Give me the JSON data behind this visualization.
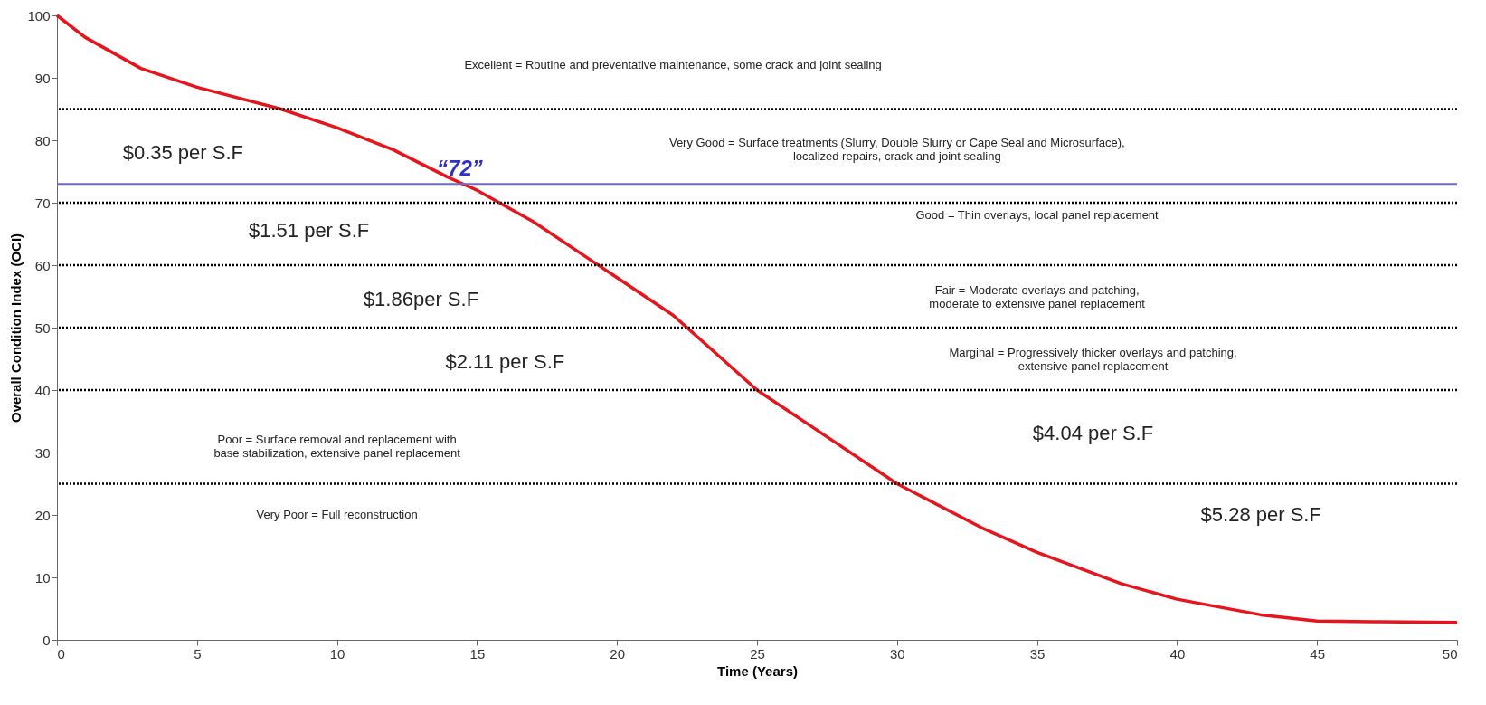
{
  "chart_data": {
    "type": "line",
    "xlabel": "Time (Years)",
    "ylabel": "Overall Condition Index (OCI)",
    "x": [
      0,
      1,
      2,
      3,
      5,
      8,
      10,
      12,
      14,
      15,
      17,
      19,
      20,
      22,
      23,
      25,
      27,
      30,
      33,
      35,
      38,
      40,
      43,
      45,
      47,
      50
    ],
    "series": [
      {
        "color": "#e8141c",
        "values": [
          100,
          96.5,
          94,
          91.5,
          88.5,
          85,
          82,
          78.5,
          74,
          72,
          67,
          61,
          58,
          52,
          48,
          40,
          34,
          25,
          18,
          14,
          9,
          6.5,
          4,
          3,
          2.9,
          2.8
        ]
      }
    ],
    "xlim": [
      0,
      50
    ],
    "xticks": [
      0,
      5,
      10,
      15,
      20,
      25,
      30,
      35,
      40,
      45,
      50
    ],
    "ylim": [
      0,
      100
    ],
    "yticks": [
      0,
      10,
      20,
      30,
      40,
      50,
      60,
      70,
      80,
      90,
      100
    ],
    "grid": false,
    "marker": "none",
    "line_style": "solid",
    "ref_lines": [
      {
        "axis": "y",
        "value": 85,
        "color": "#000000",
        "line_style": "dotted"
      },
      {
        "axis": "y",
        "value": 73,
        "color": "#6b6bbf",
        "line_style": "solid"
      },
      {
        "axis": "y",
        "value": 70,
        "color": "#000000",
        "line_style": "dotted"
      },
      {
        "axis": "y",
        "value": 60,
        "color": "#000000",
        "line_style": "dotted"
      },
      {
        "axis": "y",
        "value": 50,
        "color": "#000000",
        "line_style": "dotted"
      },
      {
        "axis": "y",
        "value": 40,
        "color": "#000000",
        "line_style": "dotted"
      },
      {
        "axis": "y",
        "value": 25,
        "color": "#000000",
        "line_style": "dotted"
      }
    ],
    "annotations": [
      "Excellent = Routine and preventative maintenance, some crack and joint sealing",
      "Very Good = Surface treatments (Slurry, Double Slurry or Cape Seal and Microsurface),\nlocalized repairs, crack and joint sealing",
      "Good = Thin overlays, local panel replacement",
      "Fair = Moderate overlays and patching,\nmoderate to extensive panel replacement",
      "Marginal =  Progressively thicker overlays and patching,\nextensive panel replacement",
      "Poor = Surface removal and replacement with\nbase stabilization, extensive panel replacement",
      "Very Poor = Full reconstruction",
      "$0.35 per S.F",
      "$1.51 per S.F",
      "$1.86per S.F",
      "$2.11 per S.F",
      "$4.04 per S.F",
      "$5.28 per S.F",
      {
        "text": "“72”",
        "x": 14,
        "y": 73
      }
    ]
  }
}
